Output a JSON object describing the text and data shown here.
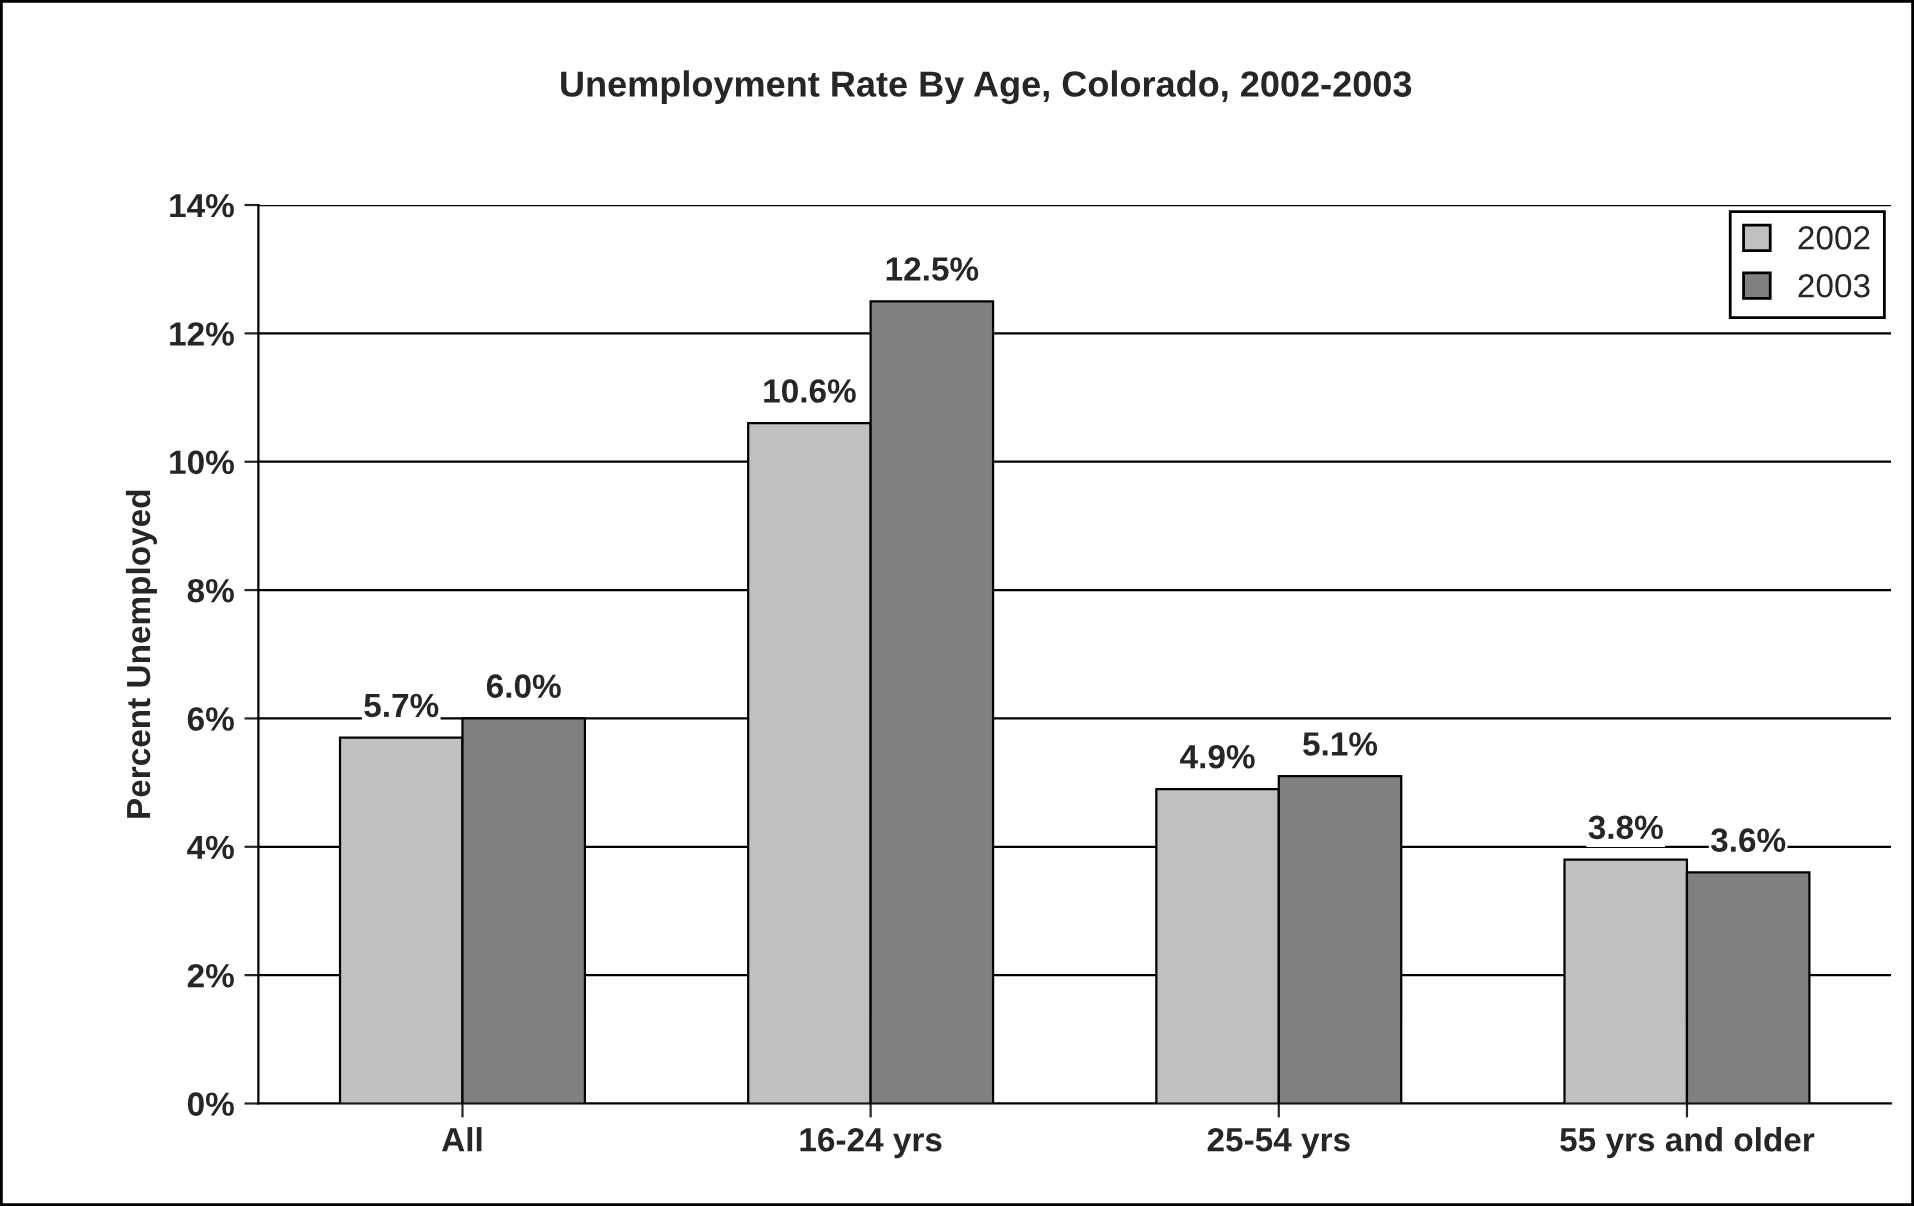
{
  "chart_data": {
    "type": "bar",
    "title": "Unemployment Rate By Age, Colorado, 2002-2003",
    "ylabel": "Percent Unemployed",
    "categories": [
      "All",
      "16-24 yrs",
      "25-54 yrs",
      "55 yrs and older"
    ],
    "series": [
      {
        "name": "2002",
        "color": "#c0c0c0",
        "values": [
          5.7,
          10.6,
          4.9,
          3.8
        ],
        "value_labels": [
          "5.7%",
          "10.6%",
          "4.9%",
          "3.8%"
        ]
      },
      {
        "name": "2003",
        "color": "#808080",
        "values": [
          6.0,
          12.5,
          5.1,
          3.6
        ],
        "value_labels": [
          "6.0%",
          "12.5%",
          "5.1%",
          "3.6%"
        ]
      }
    ],
    "ylim": [
      0,
      14
    ],
    "yticks": [
      {
        "value": 0,
        "label": "0%"
      },
      {
        "value": 2,
        "label": "2%"
      },
      {
        "value": 4,
        "label": "4%"
      },
      {
        "value": 6,
        "label": "6%"
      },
      {
        "value": 8,
        "label": "8%"
      },
      {
        "value": 10,
        "label": "10%"
      },
      {
        "value": 12,
        "label": "12%"
      },
      {
        "value": 14,
        "label": "14%"
      }
    ],
    "grid": "y",
    "legend": "top right"
  }
}
